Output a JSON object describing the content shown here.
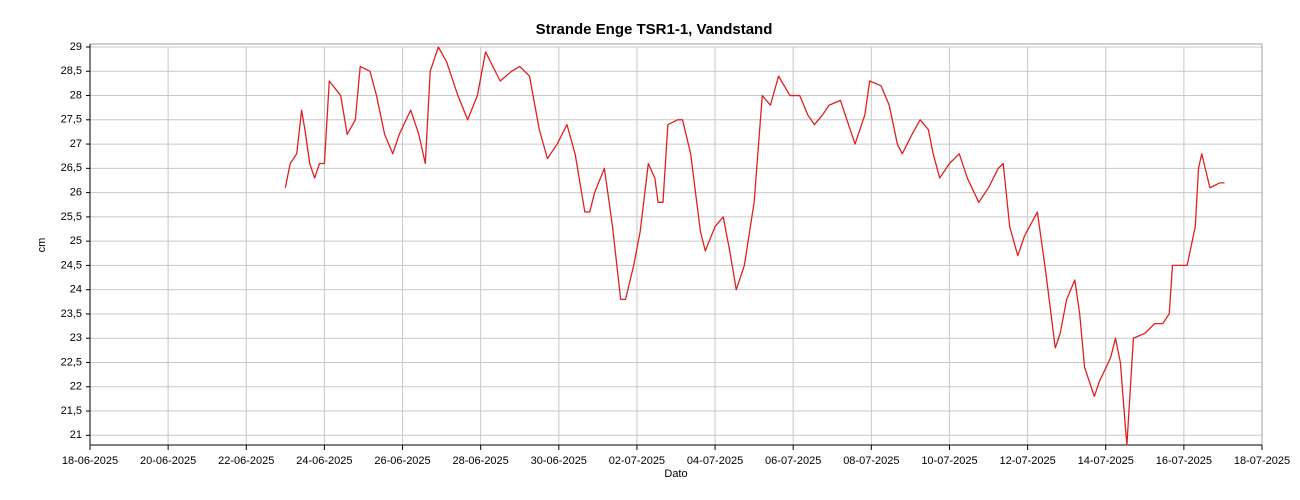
{
  "chart_data": {
    "type": "line",
    "title": "Strande Enge TSR1-1, Vandstand",
    "x_label": "Dato",
    "y_label": "cm",
    "grid": true,
    "xlim": [
      "18-06-2025",
      "18-07-2025"
    ],
    "xticks": [
      "18-06-2025",
      "20-06-2025",
      "22-06-2025",
      "24-06-2025",
      "26-06-2025",
      "28-06-2025",
      "30-06-2025",
      "02-07-2025",
      "04-07-2025",
      "06-07-2025",
      "08-07-2025",
      "10-07-2025",
      "12-07-2025",
      "14-07-2025",
      "16-07-2025",
      "18-07-2025"
    ],
    "ylim": [
      20.8,
      29
    ],
    "yticks": [
      21,
      {
        "value": 21.5,
        "label": "21,5"
      },
      22,
      {
        "value": 22.5,
        "label": "22,5"
      },
      23,
      {
        "value": 23.5,
        "label": "23,5"
      },
      24,
      {
        "value": 24.5,
        "label": "24,5"
      },
      25,
      {
        "value": 25.5,
        "label": "25,5"
      },
      26,
      {
        "value": 26.5,
        "label": "26,5"
      },
      27,
      {
        "value": 27.5,
        "label": "27,5"
      },
      28,
      {
        "value": 28.5,
        "label": "28,5"
      },
      29
    ],
    "x": [
      "23-06-2025 00:00",
      "23-06-2025 03:00",
      "23-06-2025 07:00",
      "23-06-2025 10:00",
      "23-06-2025 12:00",
      "23-06-2025 15:00",
      "23-06-2025 18:00",
      "23-06-2025 21:00",
      "24-06-2025 00:00",
      "24-06-2025 03:00",
      "24-06-2025 10:00",
      "24-06-2025 14:00",
      "24-06-2025 19:00",
      "24-06-2025 22:00",
      "25-06-2025 04:00",
      "25-06-2025 08:00",
      "25-06-2025 13:00",
      "25-06-2025 18:00",
      "25-06-2025 22:00",
      "26-06-2025 05:00",
      "26-06-2025 10:00",
      "26-06-2025 14:00",
      "26-06-2025 17:00",
      "26-06-2025 22:00",
      "27-06-2025 03:00",
      "27-06-2025 10:00",
      "27-06-2025 16:00",
      "27-06-2025 22:00",
      "28-06-2025 03:00",
      "28-06-2025 12:00",
      "28-06-2025 19:00",
      "29-06-2025 00:00",
      "29-06-2025 06:00",
      "29-06-2025 12:00",
      "29-06-2025 17:00",
      "29-06-2025 23:00",
      "30-06-2025 05:00",
      "30-06-2025 10:00",
      "30-06-2025 16:00",
      "30-06-2025 19:00",
      "30-06-2025 22:00",
      "01-07-2025 04:00",
      "01-07-2025 09:00",
      "01-07-2025 14:00",
      "01-07-2025 17:00",
      "01-07-2025 22:00",
      "02-07-2025 02:00",
      "02-07-2025 07:00",
      "02-07-2025 11:00",
      "02-07-2025 13:00",
      "02-07-2025 16:00",
      "02-07-2025 19:00",
      "03-07-2025 01:00",
      "03-07-2025 04:00",
      "03-07-2025 09:00",
      "03-07-2025 15:00",
      "03-07-2025 18:00",
      "04-07-2025 00:00",
      "04-07-2025 05:00",
      "04-07-2025 09:00",
      "04-07-2025 13:00",
      "04-07-2025 18:00",
      "05-07-2025 00:00",
      "05-07-2025 05:00",
      "05-07-2025 10:00",
      "05-07-2025 15:00",
      "05-07-2025 22:00",
      "06-07-2025 04:00",
      "06-07-2025 09:00",
      "06-07-2025 13:00",
      "06-07-2025 18:00",
      "06-07-2025 22:00",
      "07-07-2025 05:00",
      "07-07-2025 10:00",
      "07-07-2025 14:00",
      "07-07-2025 20:00",
      "07-07-2025 23:00",
      "08-07-2025 06:00",
      "08-07-2025 11:00",
      "08-07-2025 16:00",
      "08-07-2025 19:00",
      "09-07-2025 01:00",
      "09-07-2025 06:00",
      "09-07-2025 11:00",
      "09-07-2025 14:00",
      "09-07-2025 18:00",
      "10-07-2025 00:00",
      "10-07-2025 06:00",
      "10-07-2025 11:00",
      "10-07-2025 18:00",
      "11-07-2025 00:00",
      "11-07-2025 06:00",
      "11-07-2025 09:00",
      "11-07-2025 13:00",
      "11-07-2025 18:00",
      "11-07-2025 22:00",
      "12-07-2025 06:00",
      "12-07-2025 11:00",
      "12-07-2025 17:00",
      "12-07-2025 20:00",
      "13-07-2025 00:00",
      "13-07-2025 05:00",
      "13-07-2025 08:00",
      "13-07-2025 11:00",
      "13-07-2025 17:00",
      "13-07-2025 20:00",
      "14-07-2025 03:00",
      "14-07-2025 06:00",
      "14-07-2025 09:00",
      "14-07-2025 12:00",
      "14-07-2025 13:00",
      "14-07-2025 17:00",
      "15-07-2025 00:00",
      "15-07-2025 06:00",
      "15-07-2025 11:00",
      "15-07-2025 15:00",
      "15-07-2025 17:00",
      "15-07-2025 20:00",
      "16-07-2025 02:00",
      "16-07-2025 07:00",
      "16-07-2025 09:00",
      "16-07-2025 11:00",
      "16-07-2025 16:00",
      "16-07-2025 22:00",
      "17-07-2025 01:00"
    ],
    "series": [
      {
        "color": "#e02020",
        "values": [
          26.1,
          26.6,
          26.8,
          27.7,
          27.3,
          26.6,
          26.3,
          26.6,
          26.6,
          28.3,
          28.0,
          27.2,
          27.5,
          28.6,
          28.5,
          28.0,
          27.2,
          26.8,
          27.2,
          27.7,
          27.2,
          26.6,
          28.5,
          29.0,
          28.7,
          28.0,
          27.5,
          28.0,
          28.9,
          28.3,
          28.5,
          28.6,
          28.4,
          27.3,
          26.7,
          27.0,
          27.4,
          26.8,
          25.6,
          25.6,
          26.0,
          26.5,
          25.3,
          23.8,
          23.8,
          24.5,
          25.2,
          26.6,
          26.3,
          25.8,
          25.8,
          27.4,
          27.5,
          27.5,
          26.8,
          25.2,
          24.8,
          25.3,
          25.5,
          24.8,
          24.0,
          24.5,
          25.8,
          28.0,
          27.8,
          28.4,
          28.0,
          28.0,
          27.6,
          27.4,
          27.6,
          27.8,
          27.9,
          27.4,
          27.0,
          27.6,
          28.3,
          28.2,
          27.8,
          27.0,
          26.8,
          27.2,
          27.5,
          27.3,
          26.8,
          26.3,
          26.6,
          26.8,
          26.3,
          25.8,
          26.1,
          26.5,
          26.6,
          25.3,
          24.7,
          25.1,
          25.6,
          24.4,
          22.8,
          23.1,
          23.8,
          24.2,
          23.5,
          22.4,
          21.8,
          22.1,
          22.6,
          23.0,
          22.5,
          21.2,
          20.8,
          23.0,
          23.1,
          23.3,
          23.3,
          23.5,
          24.5,
          24.5,
          24.5,
          25.3,
          26.5,
          26.8,
          26.1,
          26.2,
          26.2
        ]
      }
    ]
  }
}
